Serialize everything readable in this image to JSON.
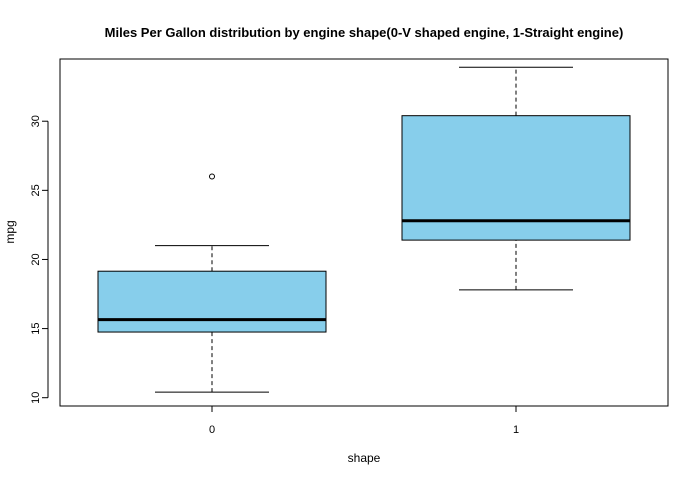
{
  "chart_data": {
    "type": "boxplot",
    "title": "Miles Per Gallon distribution by engine shape(0-V shaped engine, 1-Straight engine)",
    "xlabel": "shape",
    "ylabel": "mpg",
    "categories": [
      "0",
      "1"
    ],
    "y_ticks": [
      "10",
      "15",
      "20",
      "25",
      "30"
    ],
    "ylim": [
      9.4,
      34.5
    ],
    "grid": false,
    "legend": "none",
    "box_fill": "#87CEEB",
    "series": [
      {
        "category": "0",
        "min": 10.4,
        "q1": 14.75,
        "median": 15.65,
        "q3": 19.15,
        "max": 21.0,
        "outliers": [
          26.0
        ]
      },
      {
        "category": "1",
        "min": 17.8,
        "q1": 21.4,
        "median": 22.8,
        "q3": 30.4,
        "max": 33.9,
        "outliers": []
      }
    ]
  }
}
